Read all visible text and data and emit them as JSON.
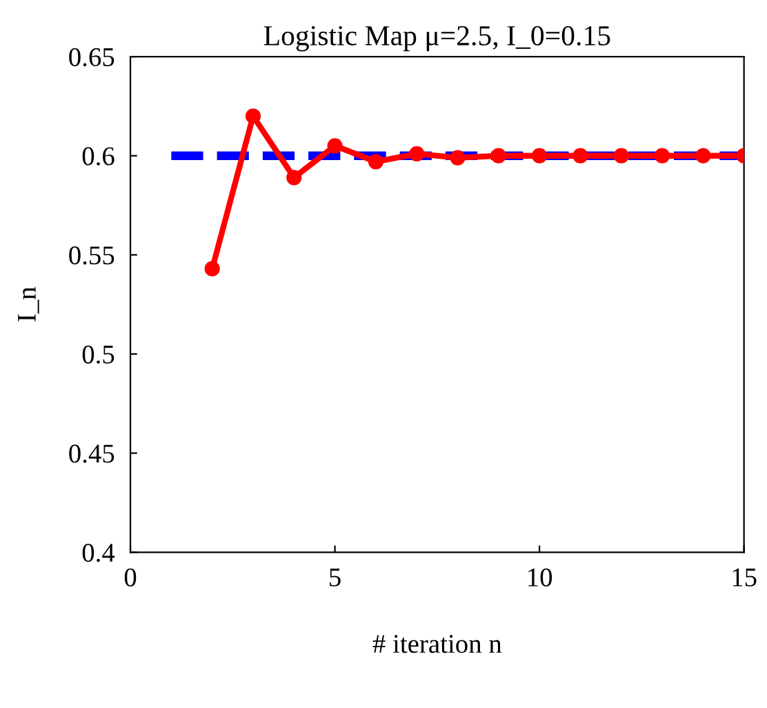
{
  "chart_data": {
    "type": "line",
    "title": "Logistic Map μ=2.5, I_0=0.15",
    "xlabel": "# iteration n",
    "ylabel": "I_n",
    "series": [
      {
        "color": "#ff0000",
        "marker": "circle",
        "line_style": "solid",
        "x": [
          2,
          3,
          4,
          5,
          6,
          7,
          8,
          9,
          10,
          11,
          12,
          13,
          14,
          15
        ],
        "values": [
          0.543,
          0.62,
          0.589,
          0.605,
          0.597,
          0.601,
          0.599,
          0.6,
          0.6,
          0.6,
          0.6,
          0.6,
          0.6,
          0.6
        ]
      },
      {
        "color": "#0000ff",
        "marker": "none",
        "line_style": "dashed",
        "x": [
          1,
          15
        ],
        "values": [
          0.6,
          0.6
        ]
      }
    ],
    "xlim": [
      0,
      15
    ],
    "ylim": [
      0.4,
      0.65
    ],
    "xticks": [
      0,
      5,
      10,
      15
    ],
    "yticks": [
      0.4,
      0.45,
      0.5,
      0.55,
      0.6,
      0.65
    ],
    "grid": false,
    "legend": false
  }
}
